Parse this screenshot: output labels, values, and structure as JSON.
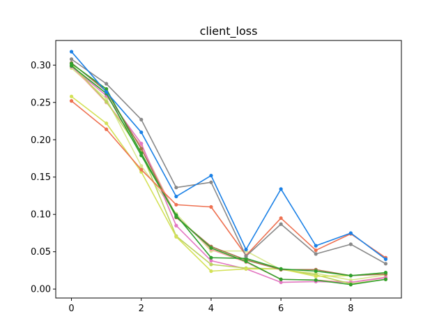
{
  "chart_data": {
    "type": "line",
    "title": "client_loss",
    "xlabel": "",
    "ylabel": "",
    "xlim": [
      -0.45,
      9.45
    ],
    "ylim": [
      -0.012,
      0.333
    ],
    "xticks": [
      0,
      2,
      4,
      6,
      8
    ],
    "yticks": [
      0.0,
      0.05,
      0.1,
      0.15,
      0.2,
      0.25,
      0.3
    ],
    "ytick_labels": [
      "0.00",
      "0.05",
      "0.10",
      "0.15",
      "0.20",
      "0.25",
      "0.30"
    ],
    "xtick_labels": [
      "0",
      "2",
      "4",
      "6",
      "8"
    ],
    "grid": false,
    "x": [
      0,
      1,
      2,
      3,
      4,
      5,
      6,
      7,
      8,
      9
    ],
    "series": [
      {
        "color": "#d9e890",
        "values": [
          0.296,
          0.255,
          0.165,
          0.101,
          0.051,
          0.051,
          0.026,
          0.021,
          0.012,
          0.019
        ]
      },
      {
        "color": "#f2a3a0",
        "values": [
          0.299,
          0.25,
          0.192,
          0.098,
          0.053,
          0.036,
          0.013,
          0.012,
          0.009,
          0.016
        ]
      },
      {
        "color": "#e377c2",
        "values": [
          0.298,
          0.259,
          0.195,
          0.085,
          0.038,
          0.027,
          0.009,
          0.01,
          0.009,
          0.015
        ]
      },
      {
        "color": "#bcd35f",
        "values": [
          0.301,
          0.251,
          0.183,
          0.071,
          0.033,
          0.028,
          0.027,
          0.019,
          0.007,
          0.013
        ]
      },
      {
        "color": "#d4e157",
        "values": [
          0.258,
          0.222,
          0.157,
          0.07,
          0.024,
          0.027,
          0.027,
          0.017,
          0.018,
          0.022
        ]
      },
      {
        "color": "#a4744a",
        "values": [
          0.303,
          0.265,
          0.188,
          0.096,
          0.057,
          0.039,
          0.026,
          0.026,
          0.018,
          0.02
        ]
      },
      {
        "color": "#2ca02c",
        "values": [
          0.299,
          0.262,
          0.179,
          0.099,
          0.042,
          0.041,
          0.027,
          0.024,
          0.018,
          0.022
        ]
      },
      {
        "color": "#33a02c",
        "values": [
          0.302,
          0.268,
          0.182,
          0.097,
          0.055,
          0.037,
          0.013,
          0.012,
          0.006,
          0.013
        ]
      },
      {
        "color": "#ee7050",
        "values": [
          0.252,
          0.214,
          0.16,
          0.113,
          0.11,
          0.045,
          0.095,
          0.052,
          0.074,
          0.042
        ]
      },
      {
        "color": "#888888",
        "values": [
          0.308,
          0.275,
          0.227,
          0.136,
          0.143,
          0.044,
          0.087,
          0.047,
          0.06,
          0.034
        ]
      },
      {
        "color": "#1a80e6",
        "values": [
          0.318,
          0.264,
          0.21,
          0.124,
          0.152,
          0.053,
          0.134,
          0.058,
          0.075,
          0.04
        ]
      }
    ]
  }
}
